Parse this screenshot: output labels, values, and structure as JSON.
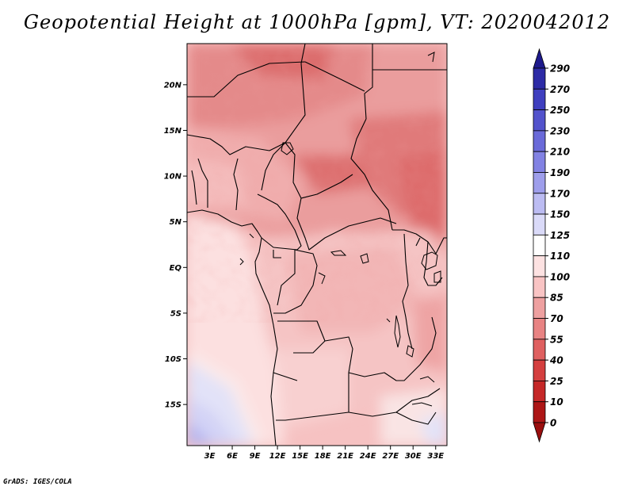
{
  "title": "Geopotential Height at 1000hPa [gpm], VT: 2020042012",
  "credit": "GrADS: IGES/COLA",
  "map": {
    "lat_labels": [
      "20N",
      "15N",
      "10N",
      "5N",
      "EQ",
      "5S",
      "10S",
      "15S"
    ],
    "lon_labels": [
      "3E",
      "6E",
      "9E",
      "12E",
      "15E",
      "18E",
      "21E",
      "24E",
      "27E",
      "30E",
      "33E"
    ],
    "lat_range": [
      -19.5,
      24.5
    ],
    "lon_range": [
      0,
      34.5
    ]
  },
  "colorbar": {
    "labels": [
      "290",
      "270",
      "250",
      "230",
      "210",
      "190",
      "170",
      "150",
      "125",
      "110",
      "100",
      "85",
      "70",
      "55",
      "40",
      "25",
      "10",
      "0"
    ],
    "colors": [
      "#1e1a8c",
      "#2d2ba6",
      "#3f3fbf",
      "#5353cc",
      "#6a6ad9",
      "#8282e3",
      "#9e9eeb",
      "#bcbcf2",
      "#dadaf8",
      "#ffffff",
      "#fde2e2",
      "#f9c4c4",
      "#eea0a0",
      "#e88383",
      "#df6060",
      "#d43f3f",
      "#c52828",
      "#ad1616",
      "#9a0e0e"
    ]
  }
}
